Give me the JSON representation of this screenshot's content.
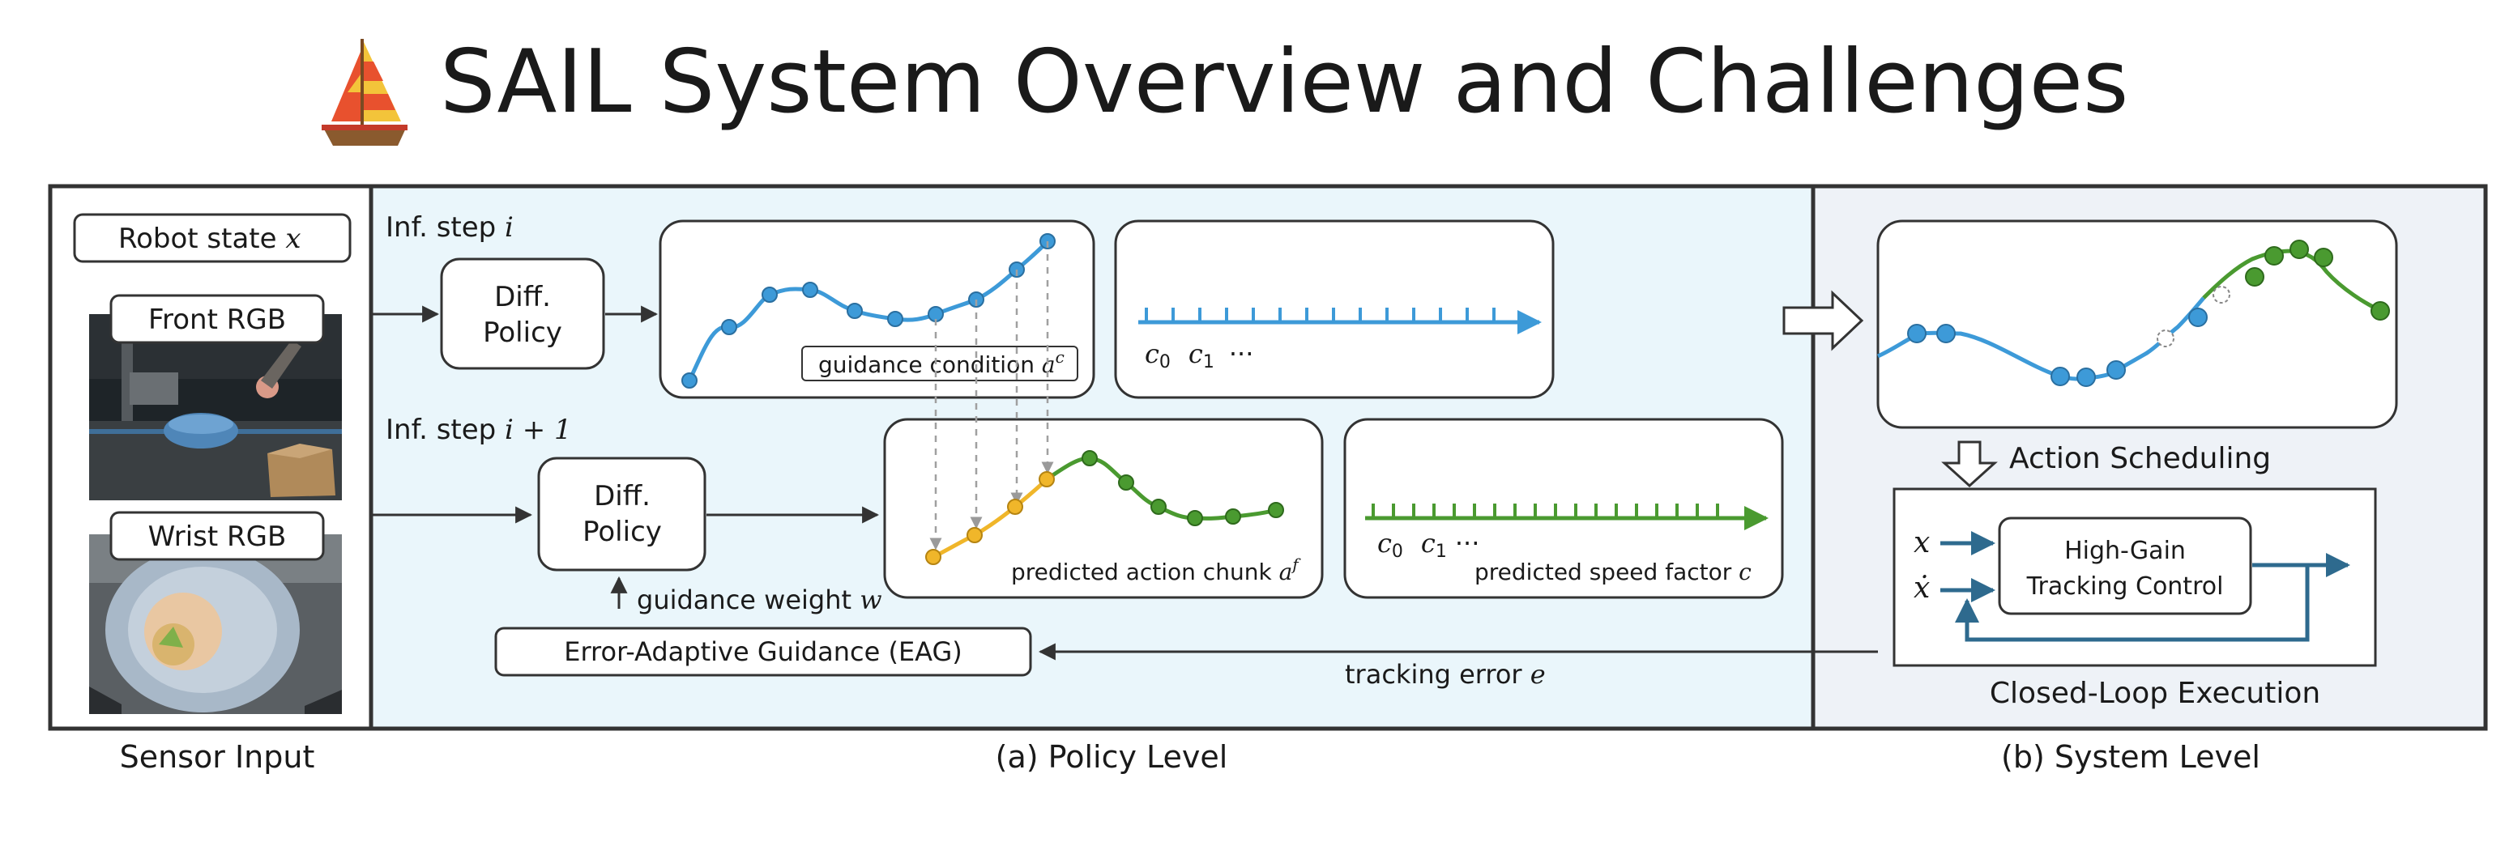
{
  "title": "SAIL System Overview and Challenges",
  "sections": {
    "sensor_input": "Sensor Input",
    "policy_level": "(a) Policy Level",
    "system_level": "(b) System Level"
  },
  "sensor": {
    "robot_state": "Robot state",
    "robot_state_var": "x",
    "front_rgb": "Front RGB",
    "wrist_rgb": "Wrist RGB"
  },
  "policy": {
    "inf_step_1": "Inf. step",
    "inf_step_1_var": "i",
    "inf_step_2": "Inf. step",
    "inf_step_2_var": "i + 1",
    "diff_policy_line1": "Diff.",
    "diff_policy_line2": "Policy",
    "guidance_condition": "guidance condition",
    "guidance_condition_var": "a",
    "guidance_condition_sup": "c",
    "predicted_action_chunk": "predicted action chunk",
    "predicted_action_chunk_var": "a",
    "predicted_action_chunk_sup": "f",
    "predicted_speed_factor": "predicted speed factor",
    "predicted_speed_factor_var": "c",
    "c0": "c",
    "c0_sub": "0",
    "c1": "c",
    "c1_sub": "1",
    "ellipsis": "···",
    "guidance_weight": "guidance weight",
    "guidance_weight_var": "w",
    "eag": "Error-Adaptive Guidance (EAG)",
    "tracking_error": "tracking error",
    "tracking_error_var": "e"
  },
  "system": {
    "action_scheduling": "Action Scheduling",
    "high_gain_line1": "High-Gain",
    "high_gain_line2": "Tracking Control",
    "x_var": "x",
    "xdot_var": "ẋ",
    "closed_loop": "Closed-Loop Execution"
  },
  "colors": {
    "blue": "#3d9ad8",
    "green": "#4a9a30",
    "yellow": "#f0b62a",
    "dark_arrow": "#2e6a8e",
    "policy_bg": "#eaf6fb",
    "system_bg": "#eef2f7"
  }
}
